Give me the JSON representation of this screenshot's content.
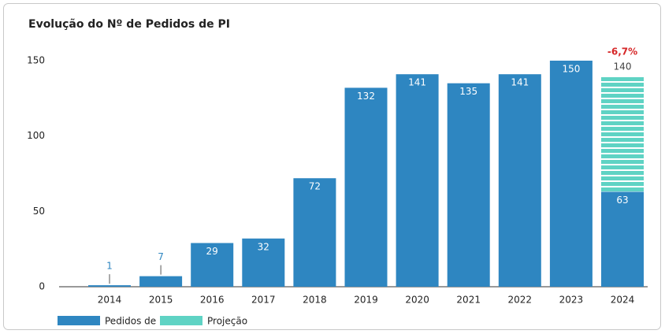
{
  "chart_data": {
    "type": "bar",
    "title": "Evolução do Nº de Pedidos de PI",
    "categories": [
      "2014",
      "2015",
      "2016",
      "2017",
      "2018",
      "2019",
      "2020",
      "2021",
      "2022",
      "2023",
      "2024"
    ],
    "series": [
      {
        "name": "Projeção",
        "color": "#5fd3c4",
        "values": [
          null,
          null,
          null,
          null,
          null,
          null,
          null,
          null,
          null,
          null,
          140
        ]
      },
      {
        "name": "Pedidos de PI",
        "color": "#2e86c1",
        "values": [
          1,
          7,
          29,
          32,
          72,
          132,
          141,
          135,
          141,
          150,
          63
        ]
      }
    ],
    "annotation": "-6,7%",
    "ylim": [
      0,
      150
    ],
    "yticks": [
      0,
      50,
      100,
      150
    ],
    "grid": false,
    "legend": "bottom-left"
  }
}
